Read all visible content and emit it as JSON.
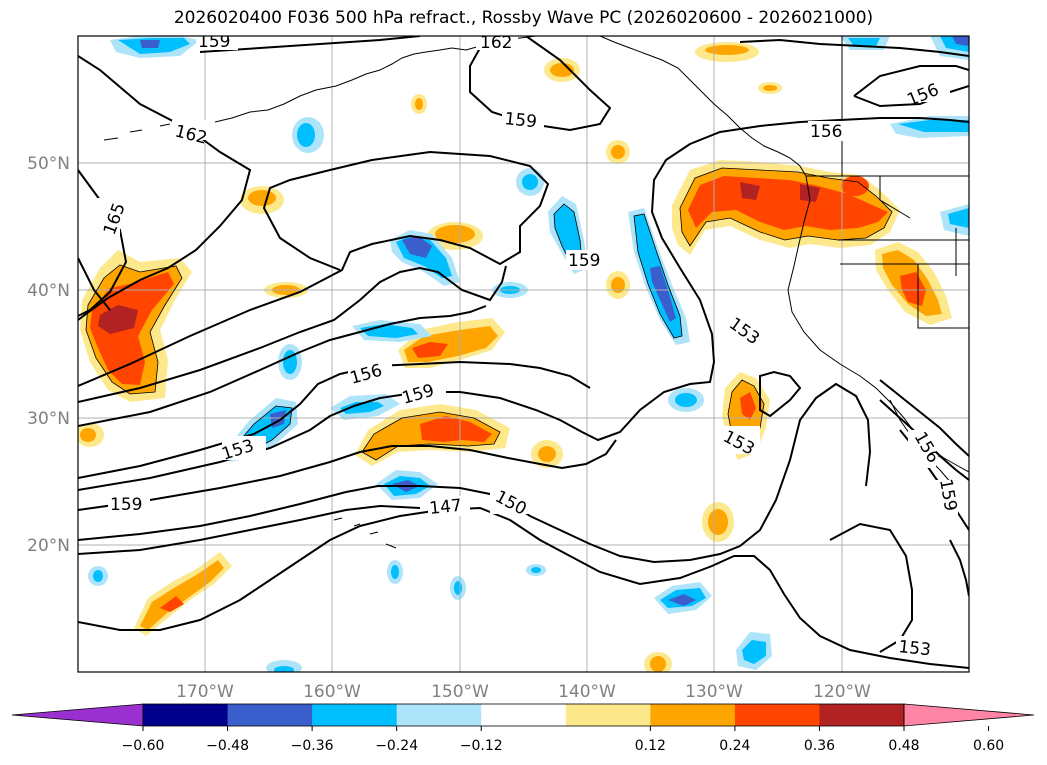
{
  "title": "2026020400 F036 500 hPa refract., Rossby Wave PC (2026020600 - 2026021000)",
  "lat_labels": [
    "50°N",
    "40°N",
    "30°N",
    "20°N"
  ],
  "lon_labels": [
    "170°W",
    "160°W",
    "150°W",
    "140°W",
    "130°W",
    "120°W"
  ],
  "contour_labels": [
    "159",
    "162",
    "159",
    "162",
    "156",
    "156",
    "165",
    "159",
    "156",
    "159",
    "153",
    "153",
    "153",
    "159",
    "147",
    "150",
    "153",
    "159",
    "156"
  ],
  "colorbar": {
    "tick_labels": [
      "−0.60",
      "−0.48",
      "−0.36",
      "−0.24",
      "−0.12",
      "0.12",
      "0.24",
      "0.36",
      "0.48",
      "0.60"
    ],
    "colors": [
      "#9b30d0",
      "#00008b",
      "#3a5fcd",
      "#00bfff",
      "#aee4fa",
      "#ffffff",
      "#fde98c",
      "#ffa500",
      "#ff4500",
      "#b22222",
      "#ff85a6"
    ]
  },
  "fill_colors": {
    "neg_light": "#aee4fa",
    "neg_mid": "#00bfff",
    "neg_strong": "#3a5fcd",
    "neg_max": "#00008b",
    "pos_light": "#fde98c",
    "pos_mid": "#ffa500",
    "pos_strong": "#ff4500",
    "pos_max": "#b22222"
  }
}
